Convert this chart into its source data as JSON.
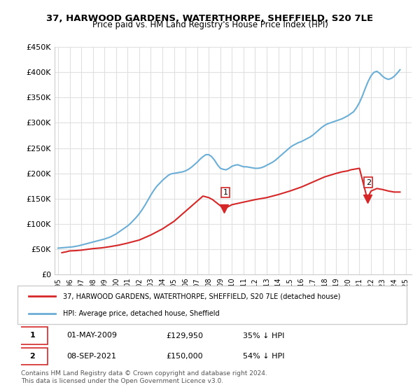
{
  "title": "37, HARWOOD GARDENS, WATERTHORPE, SHEFFIELD, S20 7LE",
  "subtitle": "Price paid vs. HM Land Registry's House Price Index (HPI)",
  "legend_line1": "37, HARWOOD GARDENS, WATERTHORPE, SHEFFIELD, S20 7LE (detached house)",
  "legend_line2": "HPI: Average price, detached house, Sheffield",
  "annotation1_label": "1",
  "annotation1_date": "01-MAY-2009",
  "annotation1_price": "£129,950",
  "annotation1_pct": "35% ↓ HPI",
  "annotation2_label": "2",
  "annotation2_date": "08-SEP-2021",
  "annotation2_price": "£150,000",
  "annotation2_pct": "54% ↓ HPI",
  "footer": "Contains HM Land Registry data © Crown copyright and database right 2024.\nThis data is licensed under the Open Government Licence v3.0.",
  "hpi_color": "#6baed6",
  "price_color": "#d62728",
  "marker_color": "#d62728",
  "ylim": [
    0,
    450000
  ],
  "yticks": [
    0,
    50000,
    100000,
    150000,
    200000,
    250000,
    300000,
    350000,
    400000,
    450000
  ],
  "xlim_start": 1995.0,
  "xlim_end": 2025.5,
  "hpi_years": [
    1995.0,
    1995.25,
    1995.5,
    1995.75,
    1996.0,
    1996.25,
    1996.5,
    1996.75,
    1997.0,
    1997.25,
    1997.5,
    1997.75,
    1998.0,
    1998.25,
    1998.5,
    1998.75,
    1999.0,
    1999.25,
    1999.5,
    1999.75,
    2000.0,
    2000.25,
    2000.5,
    2000.75,
    2001.0,
    2001.25,
    2001.5,
    2001.75,
    2002.0,
    2002.25,
    2002.5,
    2002.75,
    2003.0,
    2003.25,
    2003.5,
    2003.75,
    2004.0,
    2004.25,
    2004.5,
    2004.75,
    2005.0,
    2005.25,
    2005.5,
    2005.75,
    2006.0,
    2006.25,
    2006.5,
    2006.75,
    2007.0,
    2007.25,
    2007.5,
    2007.75,
    2008.0,
    2008.25,
    2008.5,
    2008.75,
    2009.0,
    2009.25,
    2009.5,
    2009.75,
    2010.0,
    2010.25,
    2010.5,
    2010.75,
    2011.0,
    2011.25,
    2011.5,
    2011.75,
    2012.0,
    2012.25,
    2012.5,
    2012.75,
    2013.0,
    2013.25,
    2013.5,
    2013.75,
    2014.0,
    2014.25,
    2014.5,
    2014.75,
    2015.0,
    2015.25,
    2015.5,
    2015.75,
    2016.0,
    2016.25,
    2016.5,
    2016.75,
    2017.0,
    2017.25,
    2017.5,
    2017.75,
    2018.0,
    2018.25,
    2018.5,
    2018.75,
    2019.0,
    2019.25,
    2019.5,
    2019.75,
    2020.0,
    2020.25,
    2020.5,
    2020.75,
    2021.0,
    2021.25,
    2021.5,
    2021.75,
    2022.0,
    2022.25,
    2022.5,
    2022.75,
    2023.0,
    2023.25,
    2023.5,
    2023.75,
    2024.0,
    2024.25,
    2024.5
  ],
  "hpi_values": [
    52000,
    52500,
    53000,
    53500,
    54000,
    54500,
    55500,
    56500,
    58000,
    59500,
    61000,
    62500,
    64000,
    65500,
    67000,
    68500,
    70000,
    72000,
    74000,
    77000,
    80000,
    84000,
    88000,
    92000,
    96000,
    101000,
    107000,
    113000,
    120000,
    128000,
    137000,
    147000,
    157000,
    166000,
    174000,
    180000,
    186000,
    191000,
    196000,
    199000,
    200000,
    201000,
    202000,
    203000,
    205000,
    208000,
    212000,
    217000,
    222000,
    228000,
    233000,
    237000,
    237000,
    233000,
    226000,
    217000,
    210000,
    208000,
    207000,
    210000,
    214000,
    216000,
    217000,
    215000,
    213000,
    213000,
    212000,
    211000,
    210000,
    210000,
    211000,
    213000,
    216000,
    219000,
    222000,
    226000,
    231000,
    236000,
    241000,
    246000,
    251000,
    255000,
    258000,
    261000,
    263000,
    266000,
    269000,
    272000,
    276000,
    281000,
    286000,
    291000,
    295000,
    298000,
    300000,
    302000,
    304000,
    306000,
    308000,
    311000,
    314000,
    318000,
    322000,
    330000,
    340000,
    353000,
    368000,
    382000,
    393000,
    400000,
    402000,
    398000,
    392000,
    388000,
    386000,
    388000,
    392000,
    398000,
    405000
  ],
  "price_years": [
    1995.33,
    1995.75,
    1996.0,
    1996.5,
    1997.0,
    1997.5,
    1998.0,
    1998.75,
    1999.5,
    2000.25,
    2001.0,
    2002.0,
    2003.0,
    2004.0,
    2005.0,
    2006.0,
    2007.0,
    2007.5,
    2008.0,
    2008.33,
    2009.33,
    2010.0,
    2011.0,
    2012.0,
    2013.0,
    2014.0,
    2015.0,
    2016.0,
    2017.0,
    2018.0,
    2019.0,
    2019.5,
    2020.0,
    2020.25,
    2020.5,
    2021.0,
    2021.67,
    2022.0,
    2022.5,
    2023.0,
    2023.5,
    2024.0,
    2024.5
  ],
  "price_values": [
    43000,
    45000,
    46500,
    47000,
    48000,
    49500,
    51000,
    52500,
    55000,
    58000,
    62000,
    68000,
    78000,
    90000,
    105000,
    125000,
    145000,
    155000,
    152000,
    148000,
    129950,
    138000,
    143000,
    148000,
    152000,
    158000,
    165000,
    173000,
    183000,
    193000,
    200000,
    203000,
    205000,
    207000,
    208000,
    210000,
    150000,
    165000,
    170000,
    168000,
    165000,
    163000,
    163000
  ],
  "transaction1_x": 2009.33,
  "transaction1_y": 129950,
  "transaction2_x": 2021.67,
  "transaction2_y": 150000,
  "gridcolor": "#e0e0e0",
  "background_color": "#ffffff"
}
